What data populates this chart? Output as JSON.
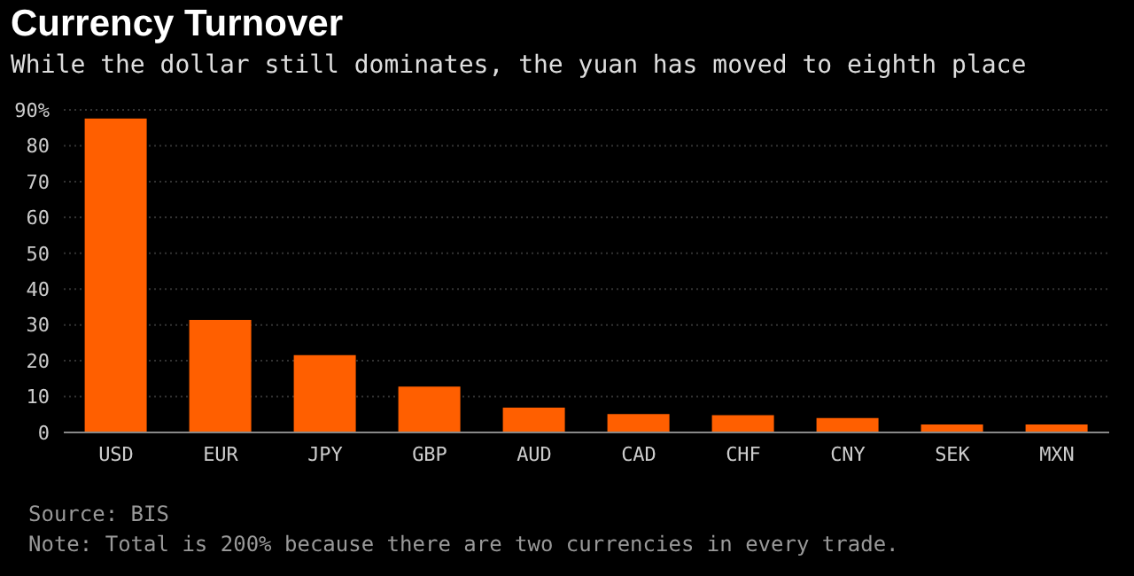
{
  "chart_data": {
    "type": "bar",
    "title": "Currency Turnover",
    "subtitle": "While the dollar still dominates, the yuan has moved to eighth place",
    "categories": [
      "USD",
      "EUR",
      "JPY",
      "GBP",
      "AUD",
      "CAD",
      "CHF",
      "CNY",
      "SEK",
      "MXN"
    ],
    "values": [
      87.6,
      31.4,
      21.6,
      12.8,
      6.9,
      5.1,
      4.8,
      4.0,
      2.2,
      2.2
    ],
    "color": "#ff5f00",
    "ylim": [
      0,
      90
    ],
    "yticks": [
      0,
      10,
      20,
      30,
      40,
      50,
      60,
      70,
      80,
      {
        "value": 90,
        "label": "90%"
      }
    ],
    "grid": "y",
    "annotations": [
      "Source: BIS",
      "Note: Total is 200% because there are two currencies in every trade."
    ]
  }
}
